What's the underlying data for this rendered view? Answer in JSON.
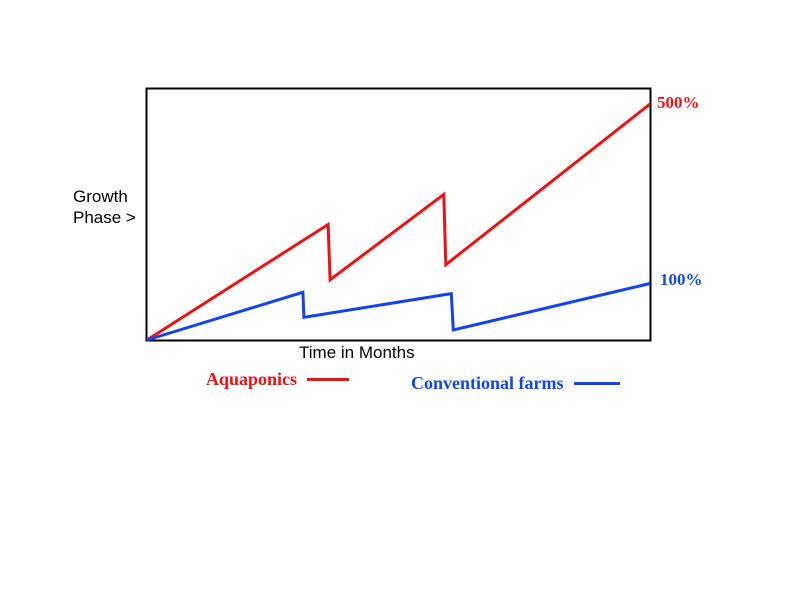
{
  "chart_data": {
    "type": "line",
    "title": "",
    "xlabel": "Time in Months",
    "ylabel_lines": [
      "Growth",
      "Phase >"
    ],
    "xlim": [
      0,
      100
    ],
    "ylim": [
      0,
      100
    ],
    "grid": false,
    "legend_placement": "bottom",
    "series": [
      {
        "name": "Aquaponics",
        "color": "#ee1111",
        "end_label": "500%",
        "x": [
          0,
          36,
          36.4,
          59,
          59.4,
          100
        ],
        "y": [
          0,
          46,
          24,
          58,
          30,
          94
        ]
      },
      {
        "name": "Conventional farms",
        "color": "#1144ee",
        "end_label": "100%",
        "x": [
          0,
          31,
          31.2,
          60.5,
          60.9,
          100
        ],
        "y": [
          0,
          19,
          9,
          18.5,
          4,
          22.5
        ]
      }
    ]
  }
}
